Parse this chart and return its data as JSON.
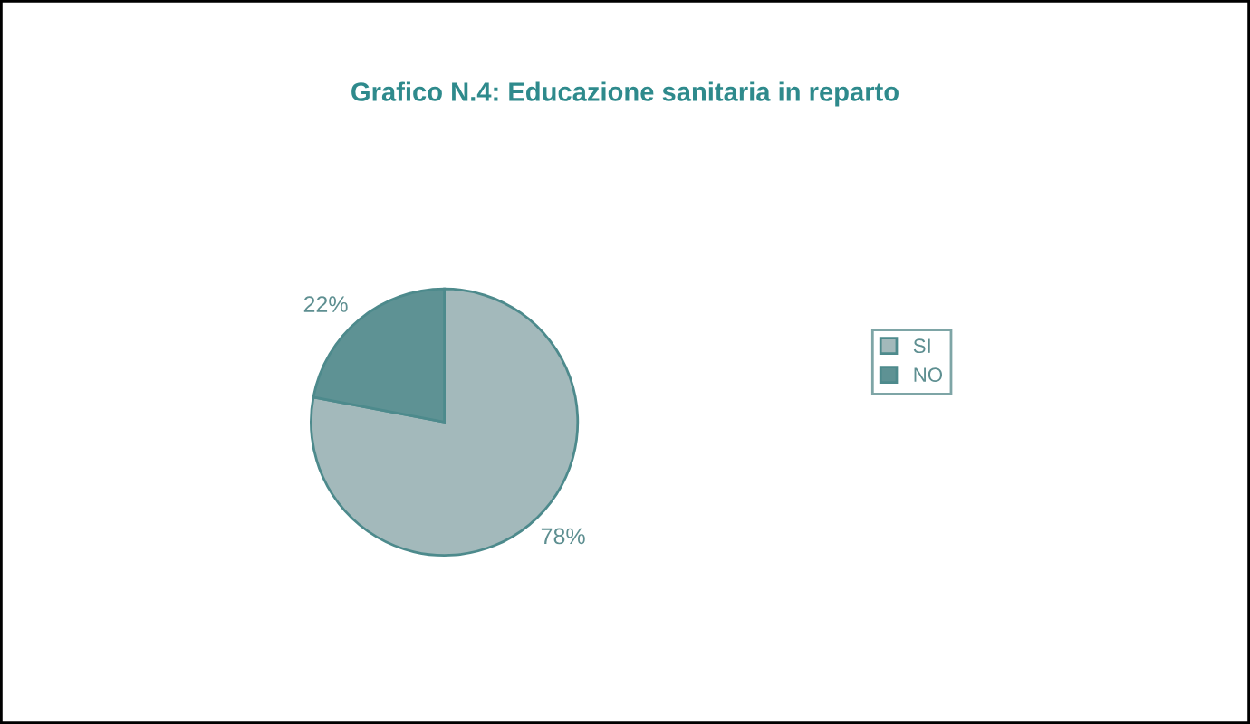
{
  "chart_data": {
    "type": "pie",
    "title": "Grafico N.4: Educazione sanitaria in reparto",
    "categories": [
      "SI",
      "NO"
    ],
    "values": [
      78,
      22
    ],
    "value_labels": [
      "78%",
      "22%"
    ],
    "colors": [
      "#a3b9bb",
      "#5e9294"
    ],
    "legend": "right"
  }
}
